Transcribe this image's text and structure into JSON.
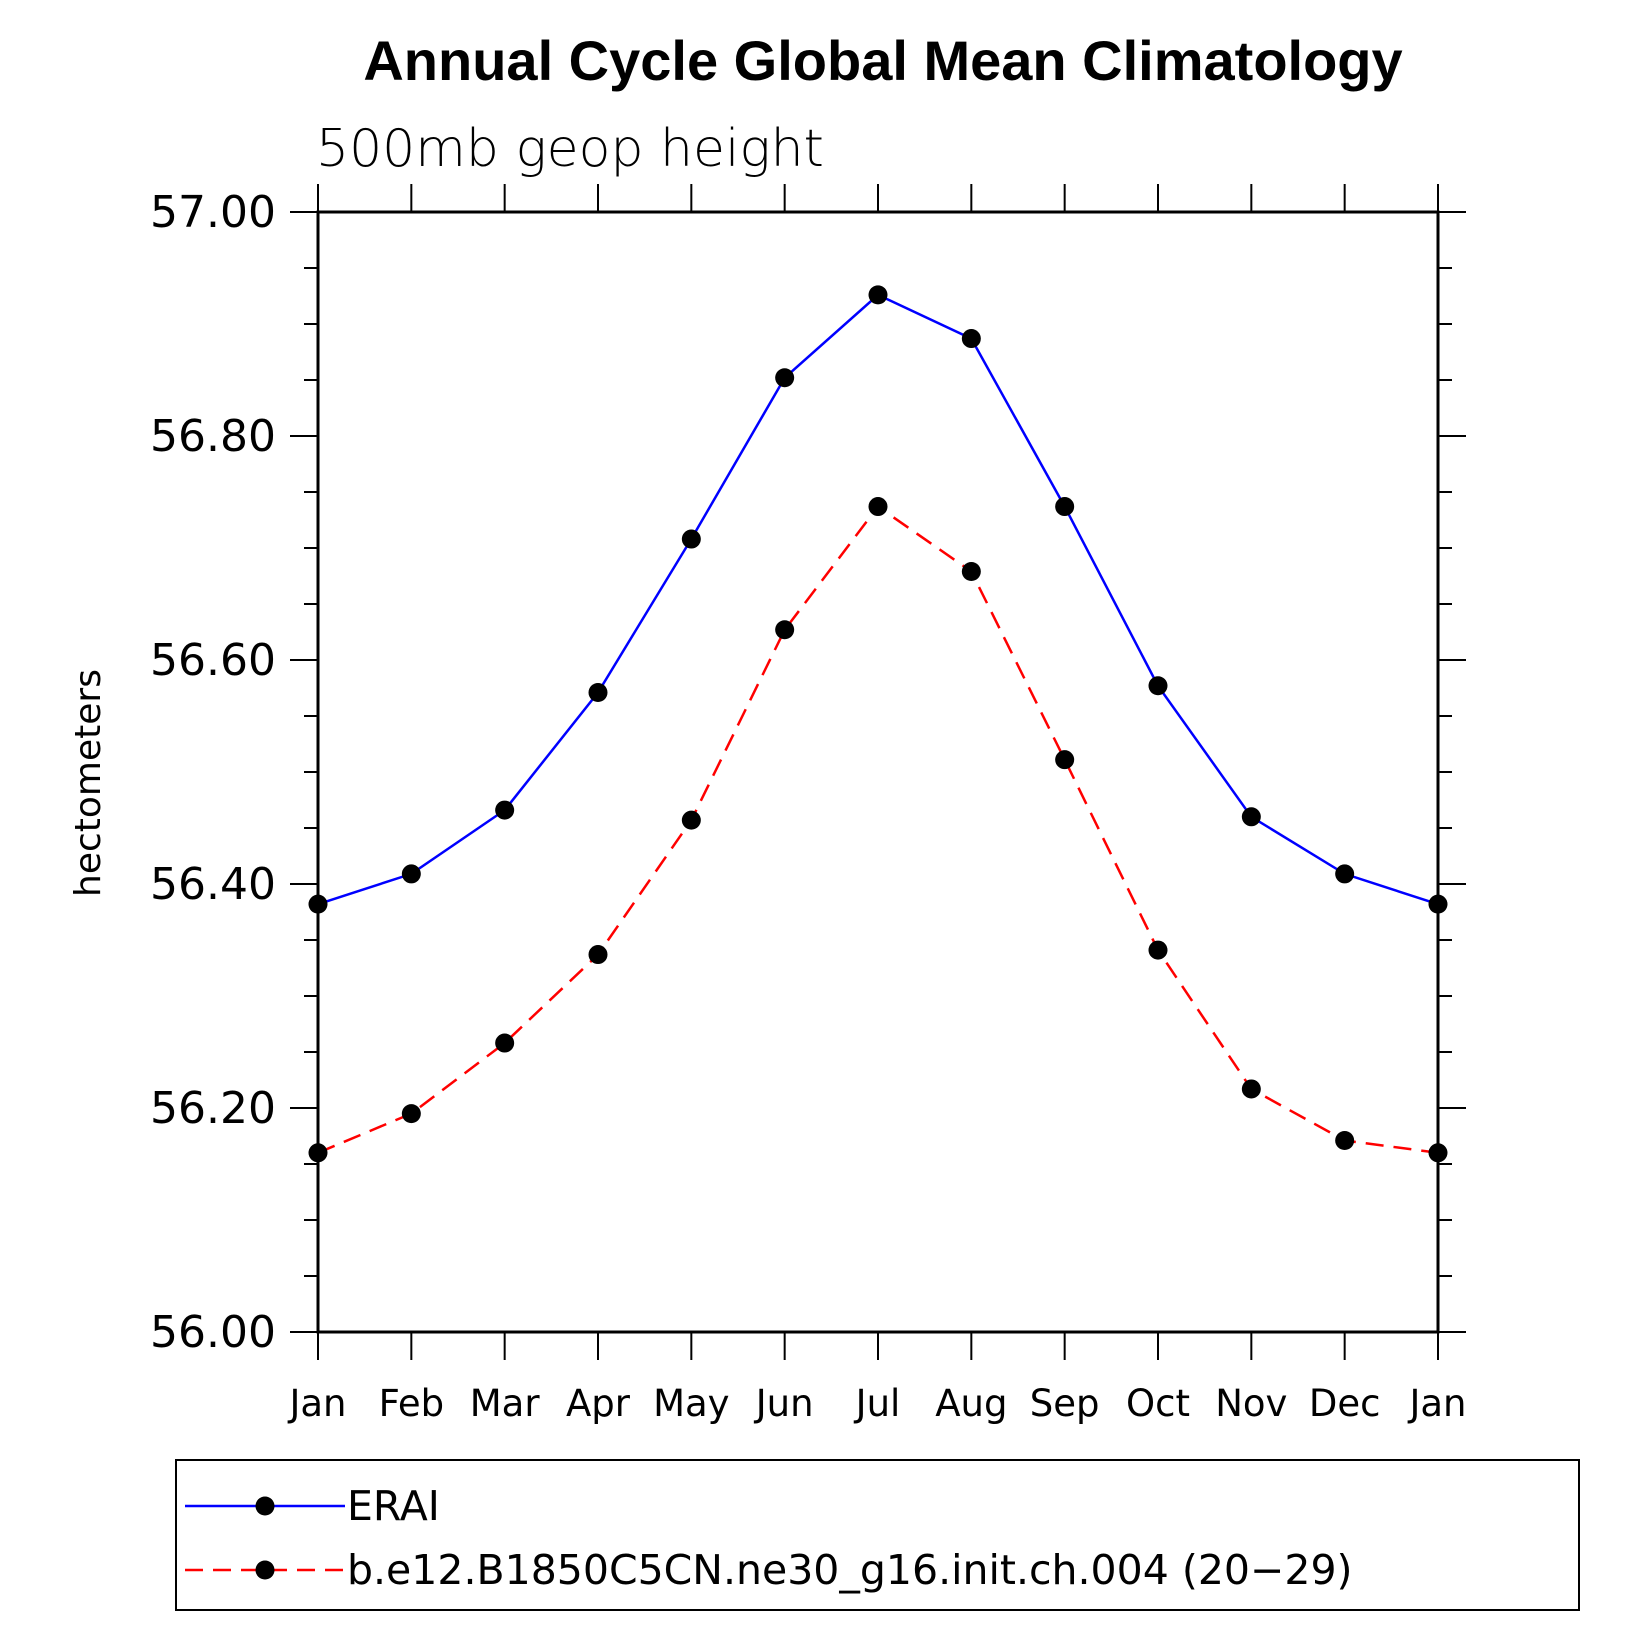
{
  "chart_data": {
    "type": "line",
    "title": "Annual Cycle Global Mean Climatology",
    "subtitle": "500mb geop height",
    "xlabel": "",
    "ylabel": "hectometers",
    "categories": [
      "Jan",
      "Feb",
      "Mar",
      "Apr",
      "May",
      "Jun",
      "Jul",
      "Aug",
      "Sep",
      "Oct",
      "Nov",
      "Dec",
      "Jan"
    ],
    "ylim": [
      56.0,
      57.0
    ],
    "yticks": [
      "56.00",
      "56.20",
      "56.40",
      "56.60",
      "56.80",
      "57.00"
    ],
    "grid": false,
    "legend_position": "bottom",
    "series": [
      {
        "name": "ERAI",
        "color": "#0000ff",
        "style": "solid",
        "marker": "filled-circle",
        "values": [
          56.382,
          56.409,
          56.466,
          56.571,
          56.708,
          56.852,
          56.926,
          56.887,
          56.737,
          56.577,
          56.46,
          56.409,
          56.382
        ]
      },
      {
        "name": "b.e12.B1850C5CN.ne30_g16.init.ch.004 (20−29)",
        "color": "#ff0000",
        "style": "dashed",
        "marker": "filled-circle",
        "values": [
          56.16,
          56.195,
          56.258,
          56.337,
          56.457,
          56.627,
          56.737,
          56.679,
          56.511,
          56.341,
          56.217,
          56.171,
          56.16
        ]
      }
    ]
  }
}
